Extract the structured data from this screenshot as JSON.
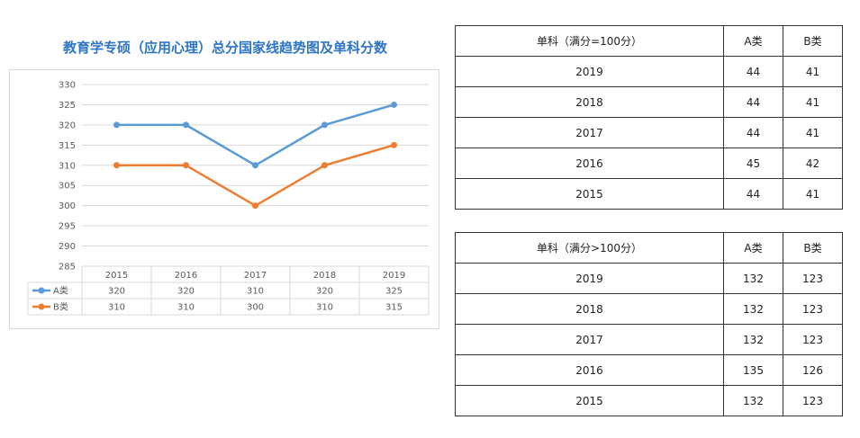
{
  "chart_data": {
    "type": "line",
    "title": "教育学专硕（应用心理）总分国家线趋势图及单科分数",
    "categories": [
      "2015",
      "2016",
      "2017",
      "2018",
      "2019"
    ],
    "series": [
      {
        "name": "A类",
        "values": [
          320,
          320,
          310,
          320,
          325
        ],
        "color": "#5b9bd5"
      },
      {
        "name": "B类",
        "values": [
          310,
          310,
          300,
          310,
          315
        ],
        "color": "#ed7d31"
      }
    ],
    "ylim": [
      285,
      330
    ],
    "yticks": [
      285,
      290,
      295,
      300,
      305,
      310,
      315,
      320,
      325,
      330
    ],
    "grid": true,
    "data_table": true
  },
  "tables": [
    {
      "headers": [
        "单科（满分=100分）",
        "A类",
        "B类"
      ],
      "rows": [
        [
          "2019",
          "44",
          "41"
        ],
        [
          "2018",
          "44",
          "41"
        ],
        [
          "2017",
          "44",
          "41"
        ],
        [
          "2016",
          "45",
          "42"
        ],
        [
          "2015",
          "44",
          "41"
        ]
      ]
    },
    {
      "headers": [
        "单科（满分>100分）",
        "A类",
        "B类"
      ],
      "rows": [
        [
          "2019",
          "132",
          "123"
        ],
        [
          "2018",
          "132",
          "123"
        ],
        [
          "2017",
          "132",
          "123"
        ],
        [
          "2016",
          "135",
          "126"
        ],
        [
          "2015",
          "132",
          "123"
        ]
      ]
    }
  ]
}
